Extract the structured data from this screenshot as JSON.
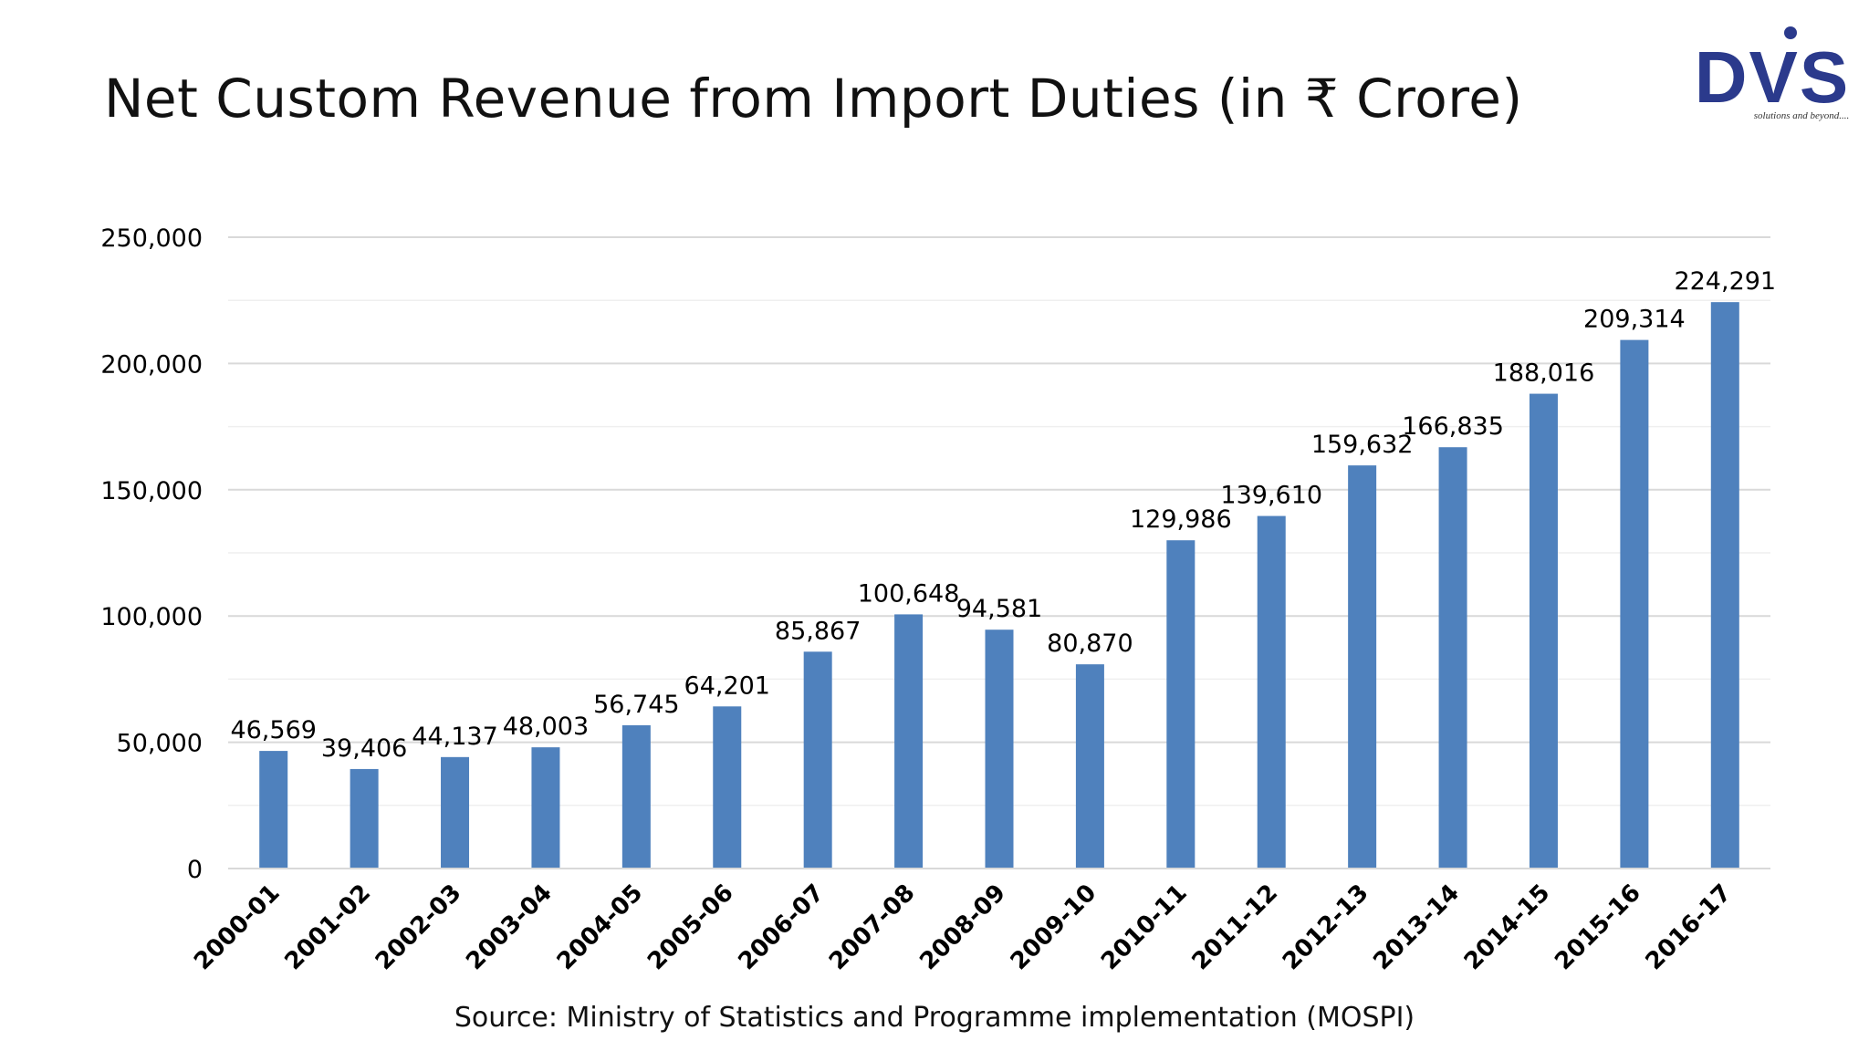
{
  "title": "Net Custom Revenue from Import Duties (in ₹ Crore)",
  "logo": {
    "text": "DVS",
    "tagline": "solutions and beyond....",
    "color": "#2b3a8c"
  },
  "source": "Source: Ministry of Statistics and Programme implementation (MOSPI)",
  "chart_data": {
    "type": "bar",
    "categories": [
      "2000-01",
      "2001-02",
      "2002-03",
      "2003-04",
      "2004-05",
      "2005-06",
      "2006-07",
      "2007-08",
      "2008-09",
      "2009-10",
      "2010-11",
      "2011-12",
      "2012-13",
      "2013-14",
      "2014-15",
      "2015-16",
      "2016-17"
    ],
    "values": [
      46569,
      39406,
      44137,
      48003,
      56745,
      64201,
      85867,
      100648,
      94581,
      80870,
      129986,
      139610,
      159632,
      166835,
      188016,
      209314,
      224291
    ],
    "value_labels": [
      "46,569",
      "39,406",
      "44,137",
      "48,003",
      "56,745",
      "64,201",
      "85,867",
      "100,648",
      "94,581",
      "80,870",
      "129,986",
      "139,610",
      "159,632",
      "166,835",
      "188,016",
      "209,314",
      "224,291"
    ],
    "ylim": [
      0,
      250000
    ],
    "yticks": [
      0,
      50000,
      100000,
      150000,
      200000,
      250000
    ],
    "ytick_labels": [
      "0",
      "50,000",
      "100,000",
      "150,000",
      "200,000",
      "250,000"
    ],
    "bar_color": "#4f81bd",
    "grid": true,
    "legend": "none"
  }
}
